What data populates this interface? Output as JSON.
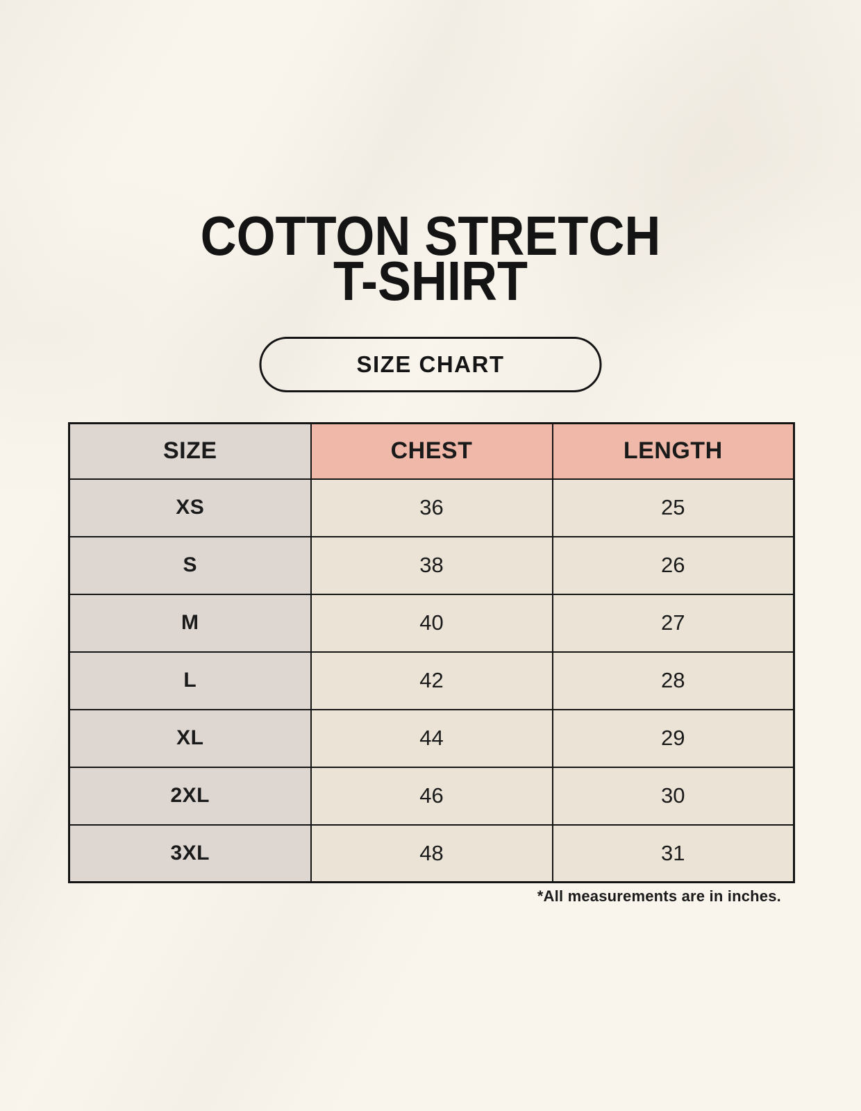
{
  "title": {
    "line1": "COTTON STRETCH",
    "line2": "T-SHIRT"
  },
  "badge": {
    "label": "SIZE CHART"
  },
  "footnote": "*All measurements are in inches.",
  "colors": {
    "background": "#f9f5ed",
    "header_pink": "#f0b8a8",
    "size_column_gray": "#ddd6d1",
    "cell_beige": "#eae3d6",
    "border": "#141414",
    "text": "#1a1a1a"
  },
  "chart_data": {
    "type": "table",
    "title": "COTTON STRETCH T-SHIRT — SIZE CHART",
    "units": "inches",
    "columns": [
      "SIZE",
      "CHEST",
      "LENGTH"
    ],
    "rows": [
      [
        "XS",
        "36",
        "25"
      ],
      [
        "S",
        "38",
        "26"
      ],
      [
        "M",
        "40",
        "27"
      ],
      [
        "L",
        "42",
        "28"
      ],
      [
        "XL",
        "44",
        "29"
      ],
      [
        "2XL",
        "46",
        "30"
      ],
      [
        "3XL",
        "48",
        "31"
      ]
    ]
  }
}
